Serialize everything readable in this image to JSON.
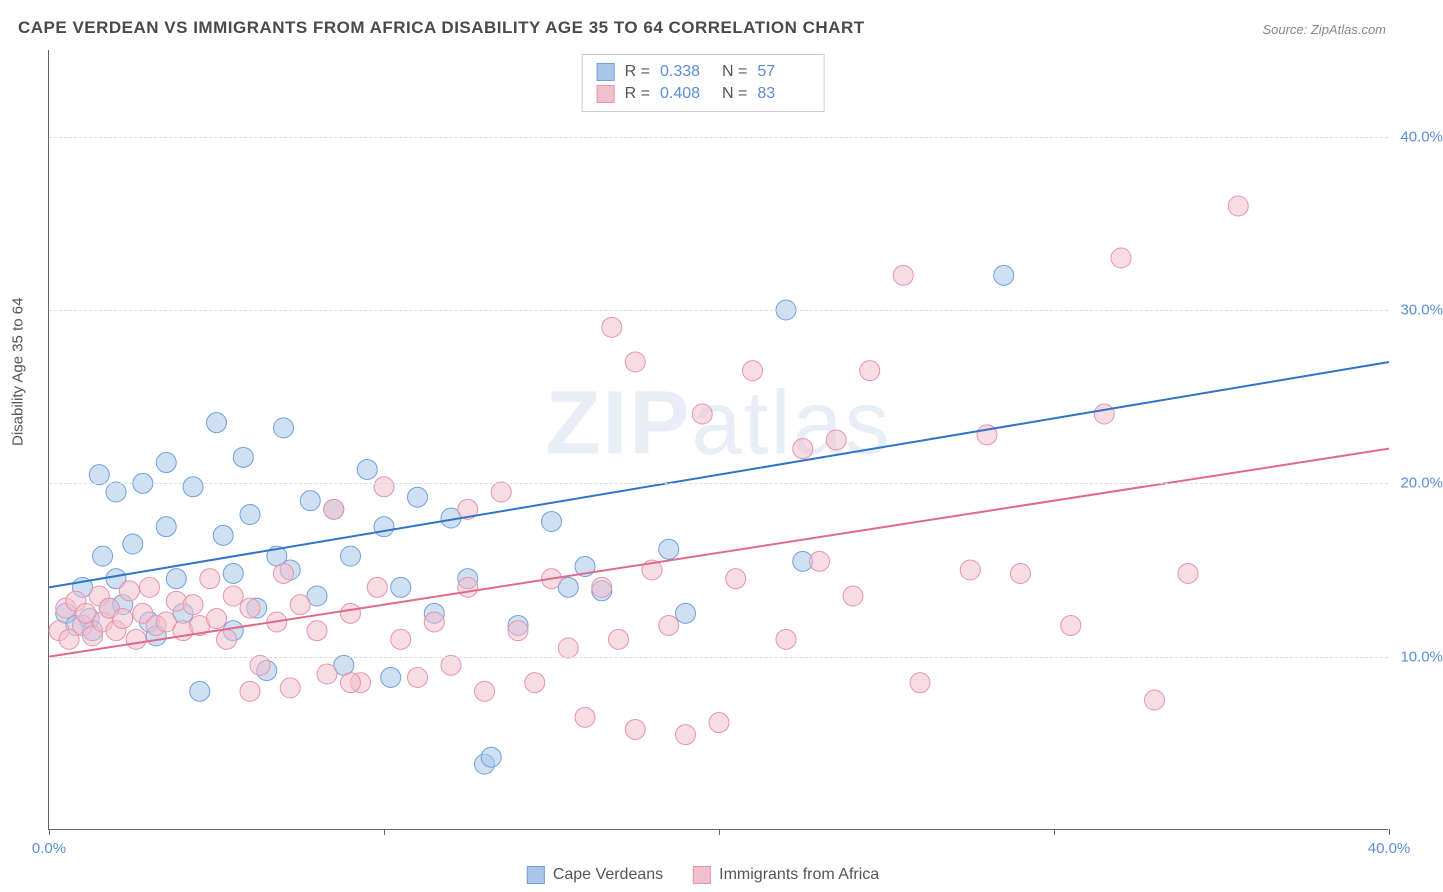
{
  "title": "CAPE VERDEAN VS IMMIGRANTS FROM AFRICA DISABILITY AGE 35 TO 64 CORRELATION CHART",
  "source": "Source: ZipAtlas.com",
  "watermark_bold": "ZIP",
  "watermark_light": "atlas",
  "y_axis_title": "Disability Age 35 to 64",
  "chart": {
    "type": "scatter-with-regression",
    "xlim": [
      0,
      40
    ],
    "ylim": [
      0,
      45
    ],
    "x_ticks": [
      0,
      10,
      20,
      30,
      40
    ],
    "x_tick_labels": [
      "0.0%",
      "",
      "",
      "",
      "40.0%"
    ],
    "y_grid": [
      10,
      20,
      30,
      40
    ],
    "y_tick_labels": [
      "10.0%",
      "20.0%",
      "30.0%",
      "40.0%"
    ],
    "background_color": "#ffffff",
    "grid_color": "#dddddd",
    "axis_color": "#666666",
    "tick_label_color": "#5b8dd6",
    "marker_radius": 10,
    "marker_opacity": 0.55,
    "line_width": 2,
    "series": [
      {
        "name": "Cape Verdeans",
        "color_fill": "#a9c6ea",
        "color_stroke": "#6fa0dd",
        "line_color": "#3273c9",
        "R": "0.338",
        "N": "57",
        "regression": {
          "x1": 0,
          "y1": 14,
          "x2": 40,
          "y2": 27
        },
        "points": [
          [
            0.5,
            12.5
          ],
          [
            0.8,
            11.8
          ],
          [
            1.0,
            14.0
          ],
          [
            1.2,
            12.2
          ],
          [
            1.3,
            11.5
          ],
          [
            1.5,
            20.5
          ],
          [
            1.6,
            15.8
          ],
          [
            1.8,
            12.8
          ],
          [
            2.0,
            19.5
          ],
          [
            2.2,
            13.0
          ],
          [
            2.5,
            16.5
          ],
          [
            2.8,
            20.0
          ],
          [
            3.0,
            12.0
          ],
          [
            3.2,
            11.2
          ],
          [
            3.5,
            21.2
          ],
          [
            3.8,
            14.5
          ],
          [
            4.0,
            12.5
          ],
          [
            4.3,
            19.8
          ],
          [
            4.5,
            8.0
          ],
          [
            5.0,
            23.5
          ],
          [
            5.2,
            17.0
          ],
          [
            5.5,
            14.8
          ],
          [
            5.8,
            21.5
          ],
          [
            6.0,
            18.2
          ],
          [
            6.2,
            12.8
          ],
          [
            6.5,
            9.2
          ],
          [
            7.0,
            23.2
          ],
          [
            7.2,
            15.0
          ],
          [
            7.8,
            19.0
          ],
          [
            8.0,
            13.5
          ],
          [
            8.5,
            18.5
          ],
          [
            8.8,
            9.5
          ],
          [
            9.5,
            20.8
          ],
          [
            10.0,
            17.5
          ],
          [
            10.2,
            8.8
          ],
          [
            10.5,
            14.0
          ],
          [
            11.0,
            19.2
          ],
          [
            11.5,
            12.5
          ],
          [
            12.0,
            18.0
          ],
          [
            12.5,
            14.5
          ],
          [
            13.0,
            3.8
          ],
          [
            13.2,
            4.2
          ],
          [
            14.0,
            11.8
          ],
          [
            15.0,
            17.8
          ],
          [
            15.5,
            14.0
          ],
          [
            16.0,
            15.2
          ],
          [
            16.5,
            13.8
          ],
          [
            18.5,
            16.2
          ],
          [
            19.0,
            12.5
          ],
          [
            22.0,
            30.0
          ],
          [
            22.5,
            15.5
          ],
          [
            28.5,
            32.0
          ],
          [
            5.5,
            11.5
          ],
          [
            2.0,
            14.5
          ],
          [
            3.5,
            17.5
          ],
          [
            6.8,
            15.8
          ],
          [
            9.0,
            15.8
          ]
        ]
      },
      {
        "name": "Immigrants from Africa",
        "color_fill": "#f1c0cd",
        "color_stroke": "#e794aa",
        "line_color": "#e06a8a",
        "R": "0.408",
        "N": "83",
        "regression": {
          "x1": 0,
          "y1": 10,
          "x2": 40,
          "y2": 22
        },
        "points": [
          [
            0.3,
            11.5
          ],
          [
            0.5,
            12.8
          ],
          [
            0.6,
            11.0
          ],
          [
            0.8,
            13.2
          ],
          [
            1.0,
            11.8
          ],
          [
            1.1,
            12.5
          ],
          [
            1.3,
            11.2
          ],
          [
            1.5,
            13.5
          ],
          [
            1.6,
            12.0
          ],
          [
            1.8,
            12.8
          ],
          [
            2.0,
            11.5
          ],
          [
            2.2,
            12.2
          ],
          [
            2.4,
            13.8
          ],
          [
            2.6,
            11.0
          ],
          [
            2.8,
            12.5
          ],
          [
            3.0,
            14.0
          ],
          [
            3.2,
            11.8
          ],
          [
            3.5,
            12.0
          ],
          [
            3.8,
            13.2
          ],
          [
            4.0,
            11.5
          ],
          [
            4.3,
            13.0
          ],
          [
            4.5,
            11.8
          ],
          [
            4.8,
            14.5
          ],
          [
            5.0,
            12.2
          ],
          [
            5.3,
            11.0
          ],
          [
            5.5,
            13.5
          ],
          [
            6.0,
            12.8
          ],
          [
            6.3,
            9.5
          ],
          [
            6.8,
            12.0
          ],
          [
            7.0,
            14.8
          ],
          [
            7.2,
            8.2
          ],
          [
            7.5,
            13.0
          ],
          [
            8.0,
            11.5
          ],
          [
            8.3,
            9.0
          ],
          [
            8.5,
            18.5
          ],
          [
            9.0,
            12.5
          ],
          [
            9.3,
            8.5
          ],
          [
            9.8,
            14.0
          ],
          [
            10.0,
            19.8
          ],
          [
            10.5,
            11.0
          ],
          [
            11.0,
            8.8
          ],
          [
            11.5,
            12.0
          ],
          [
            12.0,
            9.5
          ],
          [
            12.5,
            18.5
          ],
          [
            13.0,
            8.0
          ],
          [
            13.5,
            19.5
          ],
          [
            14.0,
            11.5
          ],
          [
            14.5,
            8.5
          ],
          [
            15.0,
            14.5
          ],
          [
            15.5,
            10.5
          ],
          [
            16.0,
            6.5
          ],
          [
            16.5,
            14.0
          ],
          [
            16.8,
            29.0
          ],
          [
            17.0,
            11.0
          ],
          [
            17.5,
            5.8
          ],
          [
            18.0,
            15.0
          ],
          [
            18.5,
            11.8
          ],
          [
            19.0,
            5.5
          ],
          [
            19.5,
            24.0
          ],
          [
            20.0,
            6.2
          ],
          [
            20.5,
            14.5
          ],
          [
            21.0,
            26.5
          ],
          [
            22.0,
            11.0
          ],
          [
            23.0,
            15.5
          ],
          [
            23.5,
            22.5
          ],
          [
            24.0,
            13.5
          ],
          [
            24.5,
            26.5
          ],
          [
            25.5,
            32.0
          ],
          [
            26.0,
            8.5
          ],
          [
            27.5,
            15.0
          ],
          [
            28.0,
            22.8
          ],
          [
            29.0,
            14.8
          ],
          [
            30.5,
            11.8
          ],
          [
            31.5,
            24.0
          ],
          [
            32.0,
            33.0
          ],
          [
            33.0,
            7.5
          ],
          [
            34.0,
            14.8
          ],
          [
            35.5,
            36.0
          ],
          [
            22.5,
            22.0
          ],
          [
            17.5,
            27.0
          ],
          [
            12.5,
            14.0
          ],
          [
            6.0,
            8.0
          ],
          [
            9.0,
            8.5
          ]
        ]
      }
    ]
  },
  "legend_top": {
    "R_label": "R  =",
    "N_label": "N  ="
  },
  "legend_bottom": {
    "items": [
      "Cape Verdeans",
      "Immigrants from Africa"
    ]
  }
}
